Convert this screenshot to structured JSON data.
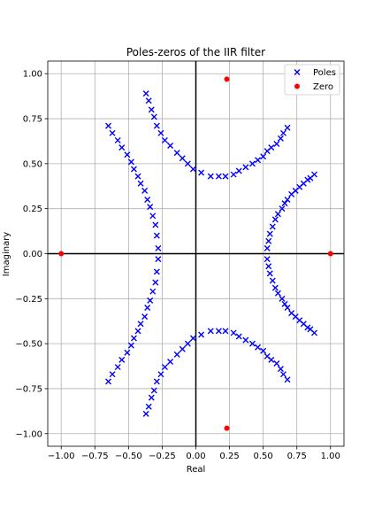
{
  "chart_data": {
    "type": "scatter",
    "title": "Poles-zeros of the IIR filter",
    "xlabel": "Real",
    "ylabel": "Imaginary",
    "xlim": [
      -1.1,
      1.1
    ],
    "ylim": [
      -1.07,
      1.07
    ],
    "xticks": [
      -1.0,
      -0.75,
      -0.5,
      -0.25,
      0.0,
      0.25,
      0.5,
      0.75,
      1.0
    ],
    "xtick_labels": [
      "−1.00",
      "−0.75",
      "−0.50",
      "−0.25",
      "0.00",
      "0.25",
      "0.50",
      "0.75",
      "1.00"
    ],
    "yticks": [
      -1.0,
      -0.75,
      -0.5,
      -0.25,
      0.0,
      0.25,
      0.5,
      0.75,
      1.0
    ],
    "ytick_labels": [
      "−1.00",
      "−0.75",
      "−0.50",
      "−0.25",
      "0.00",
      "0.25",
      "0.50",
      "0.75",
      "1.00"
    ],
    "grid": true,
    "legend_position": "top-right",
    "series": [
      {
        "name": "Poles",
        "marker": "x",
        "color": "#0000ff",
        "points": [
          [
            -0.37,
            0.89
          ],
          [
            -0.35,
            0.85
          ],
          [
            -0.33,
            0.8
          ],
          [
            -0.31,
            0.76
          ],
          [
            -0.29,
            0.71
          ],
          [
            -0.26,
            0.67
          ],
          [
            -0.23,
            0.63
          ],
          [
            -0.19,
            0.6
          ],
          [
            -0.14,
            0.56
          ],
          [
            -0.1,
            0.53
          ],
          [
            -0.06,
            0.5
          ],
          [
            -0.02,
            0.47
          ],
          [
            0.04,
            0.45
          ],
          [
            0.11,
            0.43
          ],
          [
            0.17,
            0.43
          ],
          [
            0.22,
            0.43
          ],
          [
            0.28,
            0.44
          ],
          [
            0.32,
            0.46
          ],
          [
            0.37,
            0.48
          ],
          [
            0.42,
            0.5
          ],
          [
            0.46,
            0.52
          ],
          [
            0.5,
            0.54
          ],
          [
            0.53,
            0.57
          ],
          [
            0.56,
            0.59
          ],
          [
            0.6,
            0.61
          ],
          [
            0.63,
            0.64
          ],
          [
            0.65,
            0.67
          ],
          [
            0.68,
            0.7
          ],
          [
            -0.37,
            -0.89
          ],
          [
            -0.35,
            -0.85
          ],
          [
            -0.33,
            -0.8
          ],
          [
            -0.31,
            -0.76
          ],
          [
            -0.29,
            -0.71
          ],
          [
            -0.26,
            -0.67
          ],
          [
            -0.23,
            -0.63
          ],
          [
            -0.19,
            -0.6
          ],
          [
            -0.14,
            -0.56
          ],
          [
            -0.1,
            -0.53
          ],
          [
            -0.06,
            -0.5
          ],
          [
            -0.02,
            -0.47
          ],
          [
            0.04,
            -0.45
          ],
          [
            0.11,
            -0.43
          ],
          [
            0.17,
            -0.43
          ],
          [
            0.22,
            -0.43
          ],
          [
            0.28,
            -0.44
          ],
          [
            0.32,
            -0.46
          ],
          [
            0.37,
            -0.48
          ],
          [
            0.42,
            -0.5
          ],
          [
            0.46,
            -0.52
          ],
          [
            0.5,
            -0.54
          ],
          [
            0.53,
            -0.57
          ],
          [
            0.56,
            -0.59
          ],
          [
            0.6,
            -0.61
          ],
          [
            0.63,
            -0.64
          ],
          [
            0.65,
            -0.67
          ],
          [
            0.68,
            -0.7
          ],
          [
            -0.65,
            0.71
          ],
          [
            -0.62,
            0.67
          ],
          [
            -0.58,
            0.63
          ],
          [
            -0.55,
            0.59
          ],
          [
            -0.51,
            0.55
          ],
          [
            -0.48,
            0.51
          ],
          [
            -0.46,
            0.47
          ],
          [
            -0.43,
            0.43
          ],
          [
            -0.41,
            0.39
          ],
          [
            -0.38,
            0.35
          ],
          [
            -0.36,
            0.3
          ],
          [
            -0.34,
            0.26
          ],
          [
            -0.32,
            0.21
          ],
          [
            -0.3,
            0.16
          ],
          [
            -0.29,
            0.1
          ],
          [
            -0.28,
            0.03
          ],
          [
            -0.65,
            -0.71
          ],
          [
            -0.62,
            -0.67
          ],
          [
            -0.58,
            -0.63
          ],
          [
            -0.55,
            -0.59
          ],
          [
            -0.51,
            -0.55
          ],
          [
            -0.48,
            -0.51
          ],
          [
            -0.46,
            -0.47
          ],
          [
            -0.43,
            -0.43
          ],
          [
            -0.41,
            -0.39
          ],
          [
            -0.38,
            -0.35
          ],
          [
            -0.36,
            -0.3
          ],
          [
            -0.34,
            -0.26
          ],
          [
            -0.32,
            -0.21
          ],
          [
            -0.3,
            -0.16
          ],
          [
            -0.29,
            -0.1
          ],
          [
            -0.28,
            -0.03
          ],
          [
            0.53,
            0.03
          ],
          [
            0.54,
            0.07
          ],
          [
            0.55,
            0.11
          ],
          [
            0.57,
            0.15
          ],
          [
            0.59,
            0.19
          ],
          [
            0.61,
            0.22
          ],
          [
            0.64,
            0.25
          ],
          [
            0.66,
            0.28
          ],
          [
            0.68,
            0.3
          ],
          [
            0.71,
            0.33
          ],
          [
            0.74,
            0.35
          ],
          [
            0.77,
            0.37
          ],
          [
            0.8,
            0.39
          ],
          [
            0.83,
            0.41
          ],
          [
            0.85,
            0.42
          ],
          [
            0.88,
            0.44
          ],
          [
            0.53,
            -0.03
          ],
          [
            0.54,
            -0.07
          ],
          [
            0.55,
            -0.11
          ],
          [
            0.57,
            -0.15
          ],
          [
            0.59,
            -0.19
          ],
          [
            0.61,
            -0.22
          ],
          [
            0.64,
            -0.25
          ],
          [
            0.66,
            -0.28
          ],
          [
            0.68,
            -0.3
          ],
          [
            0.71,
            -0.33
          ],
          [
            0.74,
            -0.35
          ],
          [
            0.77,
            -0.37
          ],
          [
            0.8,
            -0.39
          ],
          [
            0.83,
            -0.41
          ],
          [
            0.85,
            -0.42
          ],
          [
            0.88,
            -0.44
          ]
        ]
      },
      {
        "name": "Zero",
        "marker": "o",
        "color": "#ff0000",
        "points": [
          [
            0.23,
            0.97
          ],
          [
            0.23,
            -0.97
          ],
          [
            -1.0,
            0.0
          ],
          [
            1.0,
            0.0
          ]
        ]
      }
    ]
  }
}
